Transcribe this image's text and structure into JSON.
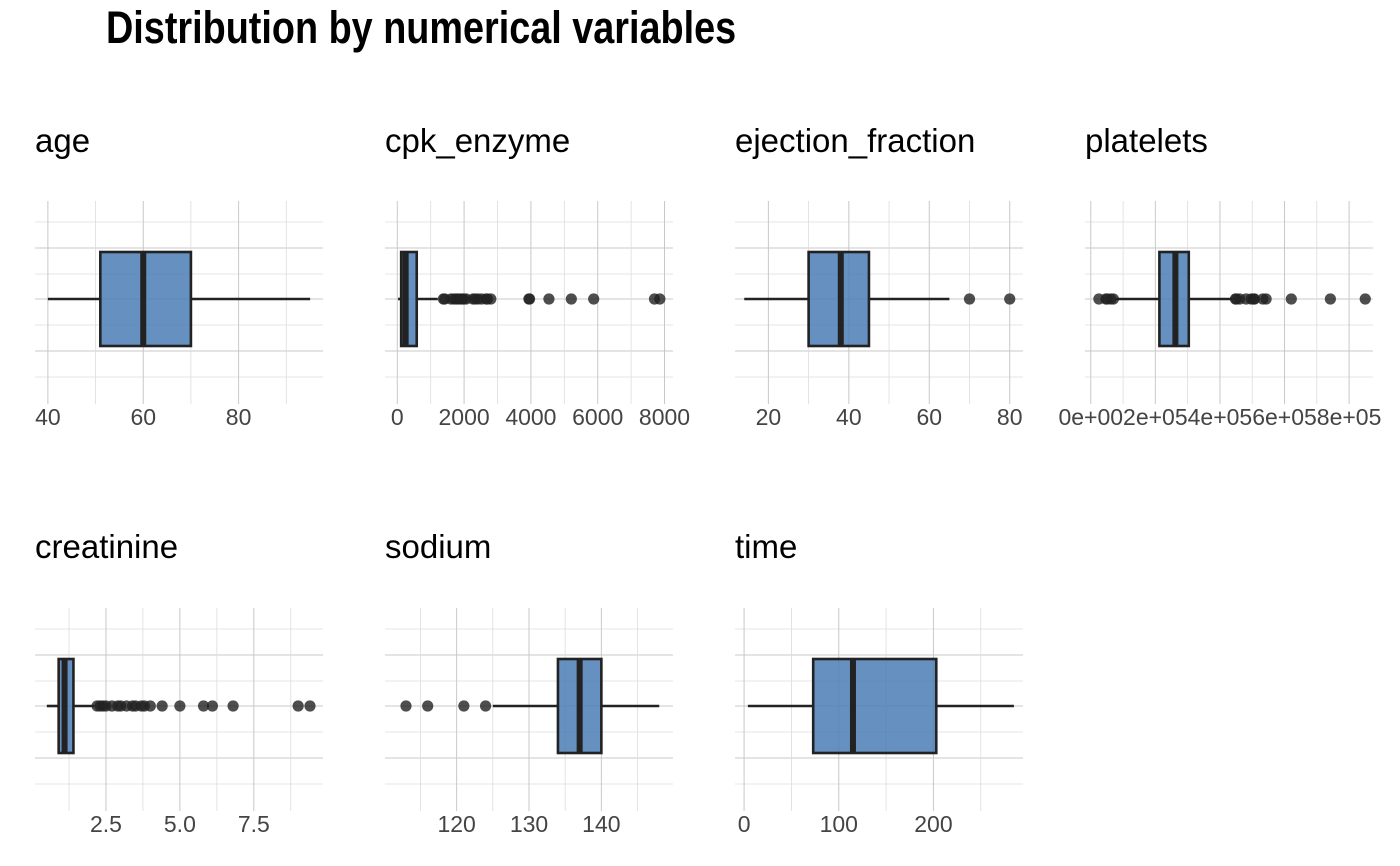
{
  "title": "Distribution by numerical variables",
  "colors": {
    "box_fill": "#4a7db4",
    "line": "#222222",
    "grid": "#c8c8c8"
  },
  "chart_data": [
    {
      "type": "box",
      "title": "age",
      "xlim": [
        37.3,
        97.7
      ],
      "ticks": [
        40,
        60,
        80
      ],
      "tick_labels": [
        "40",
        "60",
        "80"
      ],
      "minor_ticks": [
        50,
        70,
        90
      ],
      "whisker_low": 40,
      "q1": 51,
      "median": 60,
      "q3": 70,
      "whisker_high": 95,
      "outliers": []
    },
    {
      "type": "box",
      "title": "cpk_enzyme",
      "xlim": [
        -368,
        8254
      ],
      "ticks": [
        0,
        2000,
        4000,
        6000,
        8000
      ],
      "tick_labels": [
        "0",
        "2000",
        "4000",
        "6000",
        "8000"
      ],
      "minor_ticks": [
        1000,
        3000,
        5000,
        7000
      ],
      "whisker_low": 23,
      "q1": 116,
      "median": 250,
      "q3": 582,
      "whisker_high": 1211,
      "outliers": [
        1380,
        1420,
        1610,
        1690,
        1760,
        1810,
        1880,
        1940,
        1990,
        2060,
        2270,
        2330,
        2410,
        2520,
        2660,
        2700,
        2800,
        3940,
        3960,
        4540,
        5210,
        5880,
        7700,
        7860
      ]
    },
    {
      "type": "box",
      "title": "ejection_fraction",
      "xlim": [
        11.7,
        83.3
      ],
      "ticks": [
        20,
        40,
        60,
        80
      ],
      "tick_labels": [
        "20",
        "40",
        "60",
        "80"
      ],
      "minor_ticks": [
        30,
        50,
        70
      ],
      "whisker_low": 14,
      "q1": 30,
      "median": 38,
      "q3": 45,
      "whisker_high": 65,
      "outliers": [
        70,
        80
      ]
    },
    {
      "type": "box",
      "title": "platelets",
      "xlim": [
        -17900,
        874000
      ],
      "ticks": [
        0,
        200000,
        400000,
        600000,
        800000
      ],
      "tick_labels": [
        "0e+00",
        "2e+05",
        "4e+05",
        "6e+05",
        "8e+05"
      ],
      "minor_ticks": [
        100000,
        300000,
        500000,
        700000
      ],
      "whisker_low": 76000,
      "q1": 212500,
      "median": 262000,
      "q3": 303500,
      "whisker_high": 440000,
      "outliers": [
        25100,
        47000,
        51000,
        62000,
        70000,
        448000,
        451000,
        461000,
        481000,
        497000,
        504000,
        507000,
        533000,
        543000,
        621000,
        742000,
        850000
      ]
    },
    {
      "type": "box",
      "title": "creatinine",
      "xlim": [
        0.1,
        9.84
      ],
      "ticks": [
        2.5,
        5.0,
        7.5
      ],
      "tick_labels": [
        "2.5",
        "5.0",
        "7.5"
      ],
      "minor_ticks": [
        1.25,
        3.75,
        6.25,
        8.75
      ],
      "whisker_low": 0.5,
      "q1": 0.9,
      "median": 1.1,
      "q3": 1.4,
      "whisker_high": 2.1,
      "outliers": [
        2.2,
        2.3,
        2.4,
        2.5,
        2.7,
        2.9,
        3.0,
        3.2,
        3.4,
        3.5,
        3.7,
        3.8,
        4.0,
        4.4,
        5.0,
        5.8,
        6.1,
        6.8,
        9.0,
        9.4
      ]
    },
    {
      "type": "box",
      "title": "sodium",
      "xlim": [
        110.1,
        149.9
      ],
      "ticks": [
        120,
        130,
        140
      ],
      "tick_labels": [
        "120",
        "130",
        "140"
      ],
      "minor_ticks": [
        115,
        125,
        135,
        145
      ],
      "whisker_low": 125,
      "q1": 134,
      "median": 137,
      "q3": 140,
      "whisker_high": 148,
      "outliers": [
        113,
        116,
        121,
        124
      ]
    },
    {
      "type": "box",
      "title": "time",
      "xlim": [
        -9.6,
        294.6
      ],
      "ticks": [
        0,
        100,
        200
      ],
      "tick_labels": [
        "0",
        "100",
        "200"
      ],
      "minor_ticks": [
        50,
        150,
        250
      ],
      "whisker_low": 4,
      "q1": 73,
      "median": 115,
      "q3": 203,
      "whisker_high": 285,
      "outliers": []
    }
  ]
}
